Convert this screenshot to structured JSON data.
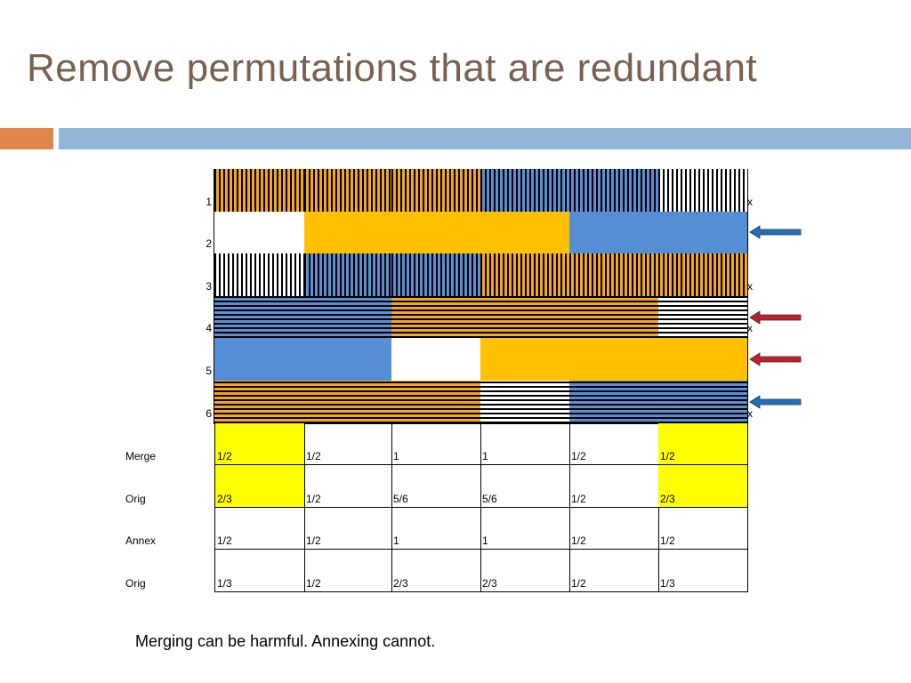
{
  "slide": {
    "title": "Remove permutations that are redundant",
    "caption": "Merging can be harmful.  Annexing cannot.",
    "colors": {
      "title": "#7a6050",
      "accent_bar": "#e0844a",
      "main_bar": "#93b6d8"
    }
  },
  "pattern_rows": [
    {
      "label": "1",
      "mark": "x",
      "cells": [
        "vstripe-orange",
        "vstripe-orange",
        "vstripe-orange",
        "vstripe-blue",
        "vstripe-blue",
        "vstripe-white"
      ]
    },
    {
      "label": "2",
      "mark": "",
      "cells": [
        "solid-white",
        "solid-orange",
        "solid-orange",
        "solid-orange",
        "solid-blue",
        "solid-blue"
      ]
    },
    {
      "label": "3",
      "mark": "x",
      "cells": [
        "vstripe-white",
        "vstripe-blue",
        "vstripe-blue",
        "vstripe-orange",
        "vstripe-orange",
        "vstripe-orange"
      ]
    },
    {
      "label": "4",
      "mark": "x",
      "cells": [
        "hstripe-blue",
        "hstripe-blue",
        "hstripe-orange",
        "hstripe-orange",
        "hstripe-orange",
        "hstripe-white"
      ]
    },
    {
      "label": "5",
      "mark": "",
      "cells": [
        "solid-blue",
        "solid-blue",
        "solid-white",
        "solid-orange",
        "solid-orange",
        "solid-orange"
      ]
    },
    {
      "label": "6",
      "mark": "x",
      "cells": [
        "hstripe-orange",
        "hstripe-orange",
        "hstripe-orange",
        "hstripe-white",
        "hstripe-blue",
        "hstripe-blue"
      ]
    }
  ],
  "arrows": [
    {
      "row": 2,
      "color": "blue"
    },
    {
      "row": 4,
      "color": "red"
    },
    {
      "row": 5,
      "color": "red"
    },
    {
      "row": 6,
      "color": "blue"
    }
  ],
  "table": [
    {
      "label": "Merge",
      "values": [
        "1/2",
        "1/2",
        "1",
        "1",
        "1/2",
        "1/2"
      ],
      "highlight": [
        true,
        false,
        false,
        false,
        false,
        true
      ]
    },
    {
      "label": "Orig",
      "values": [
        "2/3",
        "1/2",
        "5/6",
        "5/6",
        "1/2",
        "2/3"
      ],
      "highlight": [
        true,
        false,
        false,
        false,
        false,
        true
      ]
    },
    {
      "label": "Annex",
      "values": [
        "1/2",
        "1/2",
        "1",
        "1",
        "1/2",
        "1/2"
      ],
      "highlight": [
        false,
        false,
        false,
        false,
        false,
        false
      ]
    },
    {
      "label": "Orig",
      "values": [
        "1/3",
        "1/2",
        "2/3",
        "2/3",
        "1/2",
        "1/3"
      ],
      "highlight": [
        false,
        false,
        false,
        false,
        false,
        false
      ]
    }
  ]
}
